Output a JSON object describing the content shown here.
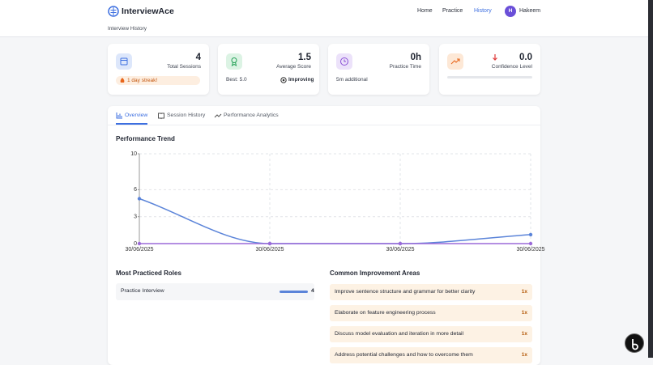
{
  "header": {
    "brand": "InterviewAce",
    "nav": [
      "Home",
      "Practice",
      "History"
    ],
    "user_initial": "H",
    "user_name": "Hakeem",
    "page_label": "Interview History"
  },
  "stats": [
    {
      "value": "4",
      "label": "Total Sessions",
      "badge": "1 day streak!"
    },
    {
      "value": "1.5",
      "label": "Average Score",
      "best": "Best: 5.0",
      "trend": "Improving"
    },
    {
      "value": "0h",
      "label": "Practice Time",
      "note": "5m additional"
    },
    {
      "value": "0.0",
      "label": "Confidence Level"
    }
  ],
  "tabs": [
    "Overview",
    "Session History",
    "Performance Analytics"
  ],
  "chart_data": {
    "type": "line",
    "title": "Performance Trend",
    "categories": [
      "30/06/2025",
      "30/06/2025",
      "30/06/2025",
      "30/06/2025"
    ],
    "series": [
      {
        "color": "#5b84d9",
        "values": [
          5,
          0,
          0,
          1
        ]
      },
      {
        "color": "#9b6ad8",
        "values": [
          0,
          0,
          0,
          0
        ]
      }
    ],
    "ylim": [
      0,
      10
    ],
    "yticks": [
      0,
      3,
      6,
      10
    ],
    "grid": true,
    "smooth": true
  },
  "roles": {
    "title": "Most Practiced Roles",
    "items": [
      {
        "name": "Practice Interview",
        "count": 4
      }
    ]
  },
  "improvements": {
    "title": "Common Improvement Areas",
    "items": [
      {
        "text": "Improve sentence structure and grammar for better clarity",
        "count": "1x"
      },
      {
        "text": "Elaborate on feature engineering process",
        "count": "1x"
      },
      {
        "text": "Discuss model evaluation and iteration in more detail",
        "count": "1x"
      },
      {
        "text": "Address potential challenges and how to overcome them",
        "count": "1x"
      }
    ]
  }
}
